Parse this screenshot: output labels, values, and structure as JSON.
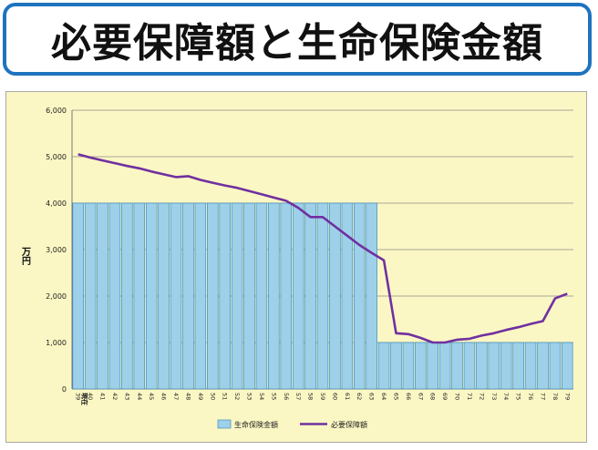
{
  "title": "必要保障額と生命保険金額",
  "chart_data": {
    "type": "bar+line",
    "ylabel": "万円",
    "ylim": [
      0,
      6000
    ],
    "yticks": [
      "0",
      "1,000",
      "2,000",
      "3,000",
      "4,000",
      "5,000",
      "6,000"
    ],
    "grid": true,
    "legend_position": "bottom",
    "categories": [
      "39",
      "40",
      "41",
      "42",
      "43",
      "44",
      "45",
      "46",
      "47",
      "48",
      "49",
      "50",
      "51",
      "52",
      "53",
      "54",
      "55",
      "56",
      "57",
      "58",
      "59",
      "60",
      "61",
      "62",
      "63",
      "64",
      "65",
      "66",
      "67",
      "68",
      "69",
      "70",
      "71",
      "72",
      "73",
      "74",
      "75",
      "76",
      "77",
      "78",
      "79"
    ],
    "first_tick_label": "現在",
    "series": [
      {
        "name": "生命保険金額",
        "type": "bar",
        "color": "#9ed0ea",
        "values": [
          4000,
          4000,
          4000,
          4000,
          4000,
          4000,
          4000,
          4000,
          4000,
          4000,
          4000,
          4000,
          4000,
          4000,
          4000,
          4000,
          4000,
          4000,
          4000,
          4000,
          4000,
          4000,
          4000,
          4000,
          4000,
          1000,
          1000,
          1000,
          1000,
          1000,
          1000,
          1000,
          1000,
          1000,
          1000,
          1000,
          1000,
          1000,
          1000,
          1000,
          1000
        ]
      },
      {
        "name": "必要保障額",
        "type": "line",
        "color": "#7030a0",
        "values": [
          5050,
          4980,
          4920,
          4860,
          4800,
          4750,
          4680,
          4620,
          4560,
          4580,
          4500,
          4440,
          4380,
          4330,
          4260,
          4190,
          4120,
          4050,
          3900,
          3700,
          3700,
          3500,
          3300,
          3100,
          2930,
          2770,
          1200,
          1180,
          1100,
          1000,
          1000,
          1060,
          1080,
          1150,
          1200,
          1270,
          1330,
          1400,
          1460,
          1950,
          2050
        ]
      }
    ]
  }
}
